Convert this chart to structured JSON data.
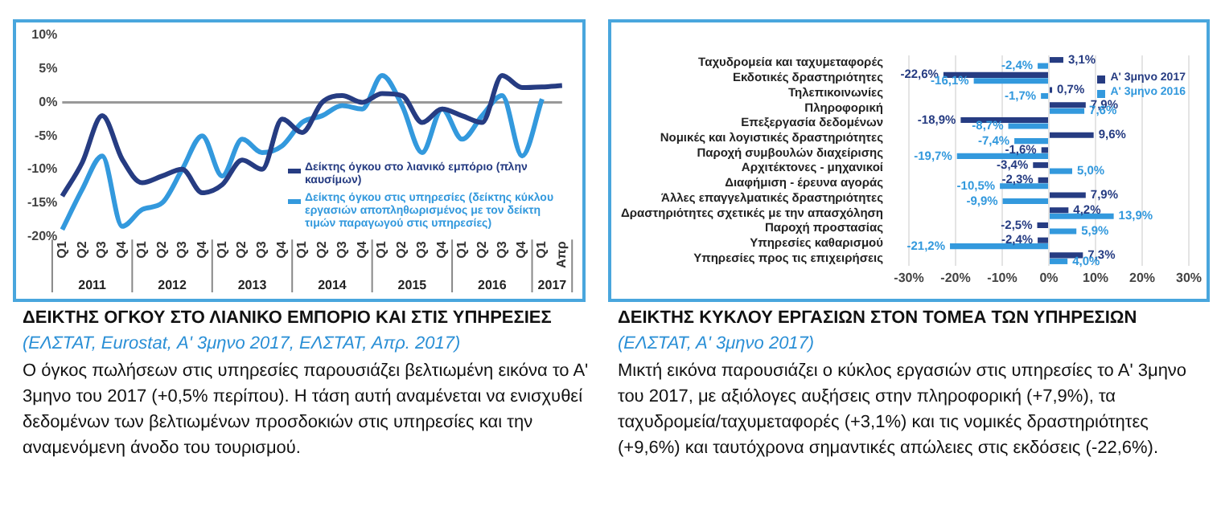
{
  "chart_data": [
    {
      "type": "line",
      "title": "ΔΕΙΚΤΗΣ ΟΓΚΟΥ ΣΤΟ ΛΙΑΝΙΚΟ ΕΜΠΟΡΙΟ ΚΑΙ ΣΤΙΣ ΥΠΗΡΕΣΙΕΣ",
      "subtitle": "(ΕΛΣΤΑΤ, Eurostat, Α' 3μηνο 2017, ΕΛΣΤΑΤ, Απρ. 2017)",
      "categories": [
        "Q1",
        "Q2",
        "Q3",
        "Q4",
        "Q1",
        "Q2",
        "Q3",
        "Q4",
        "Q1",
        "Q2",
        "Q3",
        "Q4",
        "Q1",
        "Q2",
        "Q3",
        "Q4",
        "Q1",
        "Q2",
        "Q3",
        "Q4",
        "Q1",
        "Q2",
        "Q3",
        "Q4",
        "Q1",
        "Απρ"
      ],
      "series": [
        {
          "name": "Δείκτης όγκου στο λιανικό εμπόριο (πλην καυσίμων)",
          "color": "#263c82",
          "values": [
            -14,
            -9,
            -2,
            -8.5,
            -12,
            -11,
            -10,
            -13.5,
            -12.3,
            -8.6,
            -10,
            -2.5,
            -4.5,
            0,
            1,
            0,
            1.3,
            1,
            -3,
            -1,
            -2,
            -3,
            4,
            2.2,
            2.3,
            2.5
          ]
        },
        {
          "name": "Δείκτης όγκου στις υπηρεσίες (δείκτης κύκλου εργασιών αποπληθωρισμένος με τον δείκτη τιμών παραγωγού στις υπηρεσίες)",
          "color": "#3399dd",
          "values": [
            -19,
            -13,
            -8,
            -18.5,
            -16,
            -15,
            -10,
            -5,
            -11,
            -5.5,
            -7.5,
            -6.5,
            -3,
            -2,
            -0.5,
            -1,
            4,
            -0.5,
            -7.5,
            -1,
            -5.5,
            -2,
            1,
            -8,
            0.5,
            null
          ]
        }
      ],
      "ylim": [
        -20,
        10
      ],
      "yticks": [
        {
          "value": -20,
          "label": "-20%"
        },
        {
          "value": -15,
          "label": "-15%"
        },
        {
          "value": -10,
          "label": "-10%"
        },
        {
          "value": -5,
          "label": "-5%"
        },
        {
          "value": 0,
          "label": "0%"
        },
        {
          "value": 5,
          "label": "5%"
        },
        {
          "value": 10,
          "label": "10%"
        }
      ],
      "ref_lines": [
        {
          "axis": "y",
          "value": 0,
          "color": "#999999"
        }
      ],
      "legend": "right",
      "marker": "none",
      "annotations": [
        "2011",
        "2012",
        "2013",
        "2014",
        "2015",
        "2016",
        "2017",
        "Ο όγκος πωλήσεων στις υπηρεσίες παρουσιάζει βελτιωμένη εικόνα το Α' 3μηνο του 2017 (+0,5% περίπου). Η τάση αυτή αναμένεται να ενισχυθεί δεδομένων των βελτιωμένων προσδοκιών στις υπηρεσίες και την αναμενόμενη άνοδο του τουρισμού."
      ]
    },
    {
      "type": "bar",
      "orientation": "horizontal",
      "title": "ΔΕΙΚΤΗΣ ΚΥΚΛΟΥ ΕΡΓΑΣΙΩΝ ΣΤΟΝ ΤΟΜΕΑ ΤΩΝ ΥΠΗΡΕΣΙΩΝ",
      "subtitle": "(ΕΛΣΤΑΤ, Α' 3μηνο 2017)",
      "categories": [
        "Ταχυδρομεία και ταχυμεταφορές",
        "Εκδοτικές δραστηριότητες",
        "Τηλεπικοινωνίες",
        "Πληροφορική",
        "Επεξεργασία δεδομένων",
        "Νομικές και λογιστικές δραστηριότητες",
        "Παροχή συμβουλών διαχείρισης",
        "Αρχιτέκτονες - μηχανικοί",
        "Διαφήμιση - έρευνα αγοράς",
        "Άλλες επαγγελματικές δραστηριότητες",
        "Δραστηριότητες σχετικές με την απασχόληση",
        "Παροχή προστασίας",
        "Υπηρεσίες καθαρισμού",
        "Υπηρεσίες προς τις επιχειρήσεις"
      ],
      "series": [
        {
          "name": "Α' 3μηνο 2017",
          "color": "#263c82",
          "values": [
            3.1,
            -22.6,
            0.7,
            7.9,
            -18.9,
            9.6,
            -1.6,
            -3.4,
            -2.3,
            7.9,
            4.2,
            -2.5,
            -2.4,
            7.3
          ],
          "value_labels": [
            "3,1%",
            "-22,6%",
            "0,7%",
            "7,9%",
            "-18,9%",
            "9,6%",
            "-1,6%",
            "-3,4%",
            "-2,3%",
            "7,9%",
            "4,2%",
            "-2,5%",
            "-2,4%",
            "7,3%"
          ]
        },
        {
          "name": "Α' 3μηνο 2016",
          "color": "#3399dd",
          "values": [
            -2.4,
            -16.1,
            -1.7,
            7.6,
            -8.7,
            -7.4,
            -19.7,
            5.0,
            -10.5,
            -9.9,
            13.9,
            5.9,
            -21.2,
            4.0
          ],
          "value_labels": [
            "-2,4%",
            "-16,1%",
            "-1,7%",
            "7,6%",
            "-8,7%",
            "-7,4%",
            "-19,7%",
            "5,0%",
            "-10,5%",
            "-9,9%",
            "13,9%",
            "5,9%",
            "-21,2%",
            "4,0%"
          ]
        }
      ],
      "xlim": [
        -30,
        30
      ],
      "xticks": [
        {
          "value": -30,
          "label": "-30%"
        },
        {
          "value": -20,
          "label": "-20%"
        },
        {
          "value": -10,
          "label": "-10%"
        },
        {
          "value": 0,
          "label": "0%"
        },
        {
          "value": 10,
          "label": "10%"
        },
        {
          "value": 20,
          "label": "20%"
        },
        {
          "value": 30,
          "label": "30%"
        }
      ],
      "grid": "x",
      "legend": "top right",
      "annotations": [
        "Μικτή εικόνα παρουσιάζει ο κύκλος εργασιών στις υπηρεσίες το Α' 3μηνο του 2017, με αξιόλογες αυξήσεις στην πληροφορική (+7,9%), τα ταχυδρομεία/ταχυμεταφορές (+3,1%) και τις νομικές  δραστηριότητες (+9,6%) και ταυτόχρονα σημαντικές απώλειες στις εκδόσεις (-22,6%)."
      ]
    }
  ]
}
